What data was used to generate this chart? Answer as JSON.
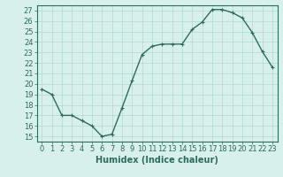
{
  "x": [
    0,
    1,
    2,
    3,
    4,
    5,
    6,
    7,
    8,
    9,
    10,
    11,
    12,
    13,
    14,
    15,
    16,
    17,
    18,
    19,
    20,
    21,
    22,
    23
  ],
  "y": [
    19.5,
    19.0,
    17.0,
    17.0,
    16.5,
    16.0,
    15.0,
    15.2,
    17.7,
    20.3,
    22.8,
    23.6,
    23.8,
    23.8,
    23.8,
    25.2,
    25.9,
    27.1,
    27.1,
    26.8,
    26.3,
    24.9,
    23.1,
    21.6
  ],
  "line_color": "#2e6b5e",
  "marker": "+",
  "marker_size": 3,
  "bg_color": "#d8f0ec",
  "grid_color": "#b0d8d0",
  "xlabel": "Humidex (Indice chaleur)",
  "xlim": [
    -0.5,
    23.5
  ],
  "ylim": [
    14.5,
    27.5
  ],
  "yticks": [
    15,
    16,
    17,
    18,
    19,
    20,
    21,
    22,
    23,
    24,
    25,
    26,
    27
  ],
  "xticks": [
    0,
    1,
    2,
    3,
    4,
    5,
    6,
    7,
    8,
    9,
    10,
    11,
    12,
    13,
    14,
    15,
    16,
    17,
    18,
    19,
    20,
    21,
    22,
    23
  ],
  "tick_label_fontsize": 6,
  "xlabel_fontsize": 7,
  "line_width": 1.0,
  "axis_color": "#2e6b5e",
  "tick_color": "#2e6b5e",
  "marker_edge_width": 0.8
}
